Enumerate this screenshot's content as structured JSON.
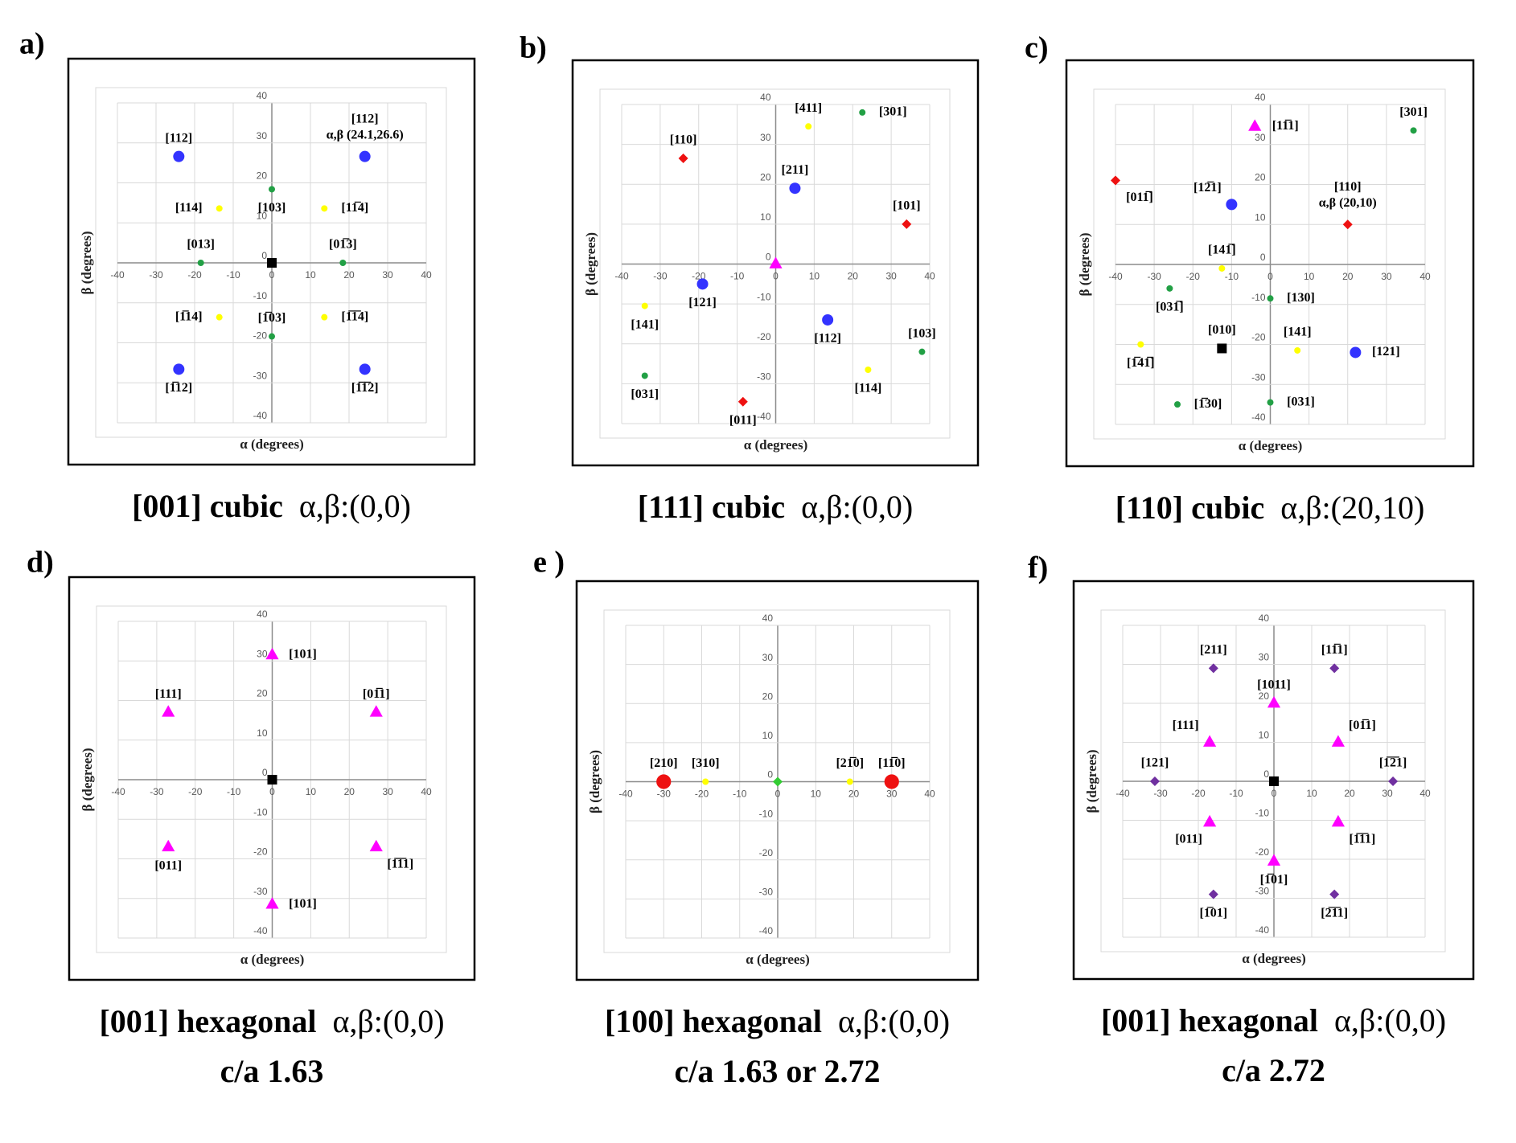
{
  "chart_data": [
    {
      "type": "scatter",
      "panel": "a)",
      "title": "[001] cubic",
      "title_coords": "α,β:(0,0)",
      "x_label": "α (degrees)",
      "y_label": "β (degrees)",
      "xlim": [
        -40,
        40
      ],
      "ylim": [
        -40,
        40
      ],
      "xticks": [
        -40,
        -30,
        -20,
        -10,
        0,
        10,
        20,
        30,
        40
      ],
      "yticks": [
        -40,
        -30,
        -20,
        -10,
        0,
        10,
        20,
        30,
        40
      ],
      "grid": true,
      "points": [
        {
          "label": "[112]",
          "x": -24.1,
          "y": 26.6,
          "color": "#3333ff",
          "marker": "circle"
        },
        {
          "label": "[112]",
          "note": "α,β (24.1,26.6)",
          "x": 24.1,
          "y": 26.6,
          "color": "#3333ff",
          "marker": "circle"
        },
        {
          "label": "[114]",
          "x": -13.6,
          "y": 13.6,
          "color": "#ffff00",
          "marker": "dot"
        },
        {
          "label": "[11̅4]",
          "x": 13.6,
          "y": 13.6,
          "color": "#ffff00",
          "marker": "dot"
        },
        {
          "label": "[103]",
          "x": 0,
          "y": 18.4,
          "color": "#22a045",
          "marker": "dot"
        },
        {
          "label": "[013]",
          "x": -18.4,
          "y": 0,
          "color": "#22a045",
          "marker": "dot"
        },
        {
          "label": "[01̅3]",
          "x": 18.4,
          "y": 0,
          "color": "#22a045",
          "marker": "dot"
        },
        {
          "x": 0,
          "y": 0,
          "color": "#000000",
          "marker": "square"
        },
        {
          "label": "[1̅14]",
          "x": -13.6,
          "y": -13.6,
          "color": "#ffff00",
          "marker": "dot"
        },
        {
          "label": "[1̅1̅4]",
          "x": 13.6,
          "y": -13.6,
          "color": "#ffff00",
          "marker": "dot"
        },
        {
          "label": "[1̅03]",
          "x": 0,
          "y": -18.4,
          "color": "#22a045",
          "marker": "dot"
        },
        {
          "label": "[1̅12]",
          "x": -24.1,
          "y": -26.6,
          "color": "#3333ff",
          "marker": "circle"
        },
        {
          "label": "[1̅1̅2]",
          "x": 24.1,
          "y": -26.6,
          "color": "#3333ff",
          "marker": "circle"
        }
      ]
    },
    {
      "type": "scatter",
      "panel": "b)",
      "title": "[111] cubic",
      "title_coords": "α,β:(0,0)",
      "x_label": "α (degrees)",
      "y_label": "β (degrees)",
      "xlim": [
        -40,
        40
      ],
      "ylim": [
        -40,
        40
      ],
      "xticks": [
        -40,
        -30,
        -20,
        -10,
        0,
        10,
        20,
        30,
        40
      ],
      "yticks": [
        -40,
        -30,
        -20,
        -10,
        0,
        10,
        20,
        30,
        40
      ],
      "grid": true,
      "points": [
        {
          "label": "[110]",
          "x": -24,
          "y": 26.5,
          "color": "#ee1111",
          "marker": "diamond"
        },
        {
          "label": "[411]",
          "x": 8.5,
          "y": 34.5,
          "color": "#ffff00",
          "marker": "dot"
        },
        {
          "label": "[301]",
          "x": 22.5,
          "y": 38,
          "color": "#22a045",
          "marker": "dot"
        },
        {
          "label": "[211]",
          "x": 5,
          "y": 19,
          "color": "#3333ff",
          "marker": "circle"
        },
        {
          "label": "[101]",
          "x": 34,
          "y": 10,
          "color": "#ee1111",
          "marker": "diamond"
        },
        {
          "x": 0,
          "y": 0,
          "color": "#ff00ff",
          "marker": "triangle"
        },
        {
          "label": "[121]",
          "x": -19,
          "y": -5,
          "color": "#3333ff",
          "marker": "circle"
        },
        {
          "label": "[141]",
          "x": -34,
          "y": -10.5,
          "color": "#ffff00",
          "marker": "dot"
        },
        {
          "label": "[112]",
          "x": 13.5,
          "y": -14,
          "color": "#3333ff",
          "marker": "circle"
        },
        {
          "label": "[103]",
          "x": 38,
          "y": -22,
          "color": "#22a045",
          "marker": "dot"
        },
        {
          "label": "[031]",
          "x": -34,
          "y": -28,
          "color": "#22a045",
          "marker": "dot"
        },
        {
          "label": "[114]",
          "x": 24,
          "y": -26.5,
          "color": "#ffff00",
          "marker": "dot"
        },
        {
          "label": "[011]",
          "x": -8.5,
          "y": -34.5,
          "color": "#ee1111",
          "marker": "diamond"
        }
      ]
    },
    {
      "type": "scatter",
      "panel": "c)",
      "title": "[110] cubic",
      "title_coords": "α,β:(20,10)",
      "x_label": "α (degrees)",
      "y_label": "β (degrees)",
      "xlim": [
        -40,
        40
      ],
      "ylim": [
        -40,
        40
      ],
      "xticks": [
        -40,
        -30,
        -20,
        -10,
        0,
        10,
        20,
        30,
        40
      ],
      "yticks": [
        -40,
        -30,
        -20,
        -10,
        0,
        10,
        20,
        30,
        40
      ],
      "grid": true,
      "points": [
        {
          "label": "[11̅1]",
          "x": -4,
          "y": 34.5,
          "color": "#ff00ff",
          "marker": "triangle"
        },
        {
          "label": "[301]",
          "x": 37,
          "y": 33.5,
          "color": "#22a045",
          "marker": "dot"
        },
        {
          "label": "[011̅]",
          "x": -40,
          "y": 21,
          "color": "#ee1111",
          "marker": "diamond"
        },
        {
          "label": "[12̅1]",
          "x": -10,
          "y": 15,
          "color": "#3333ff",
          "marker": "circle"
        },
        {
          "label": "[110]",
          "note": "α,β (20,10)",
          "x": 20,
          "y": 10,
          "color": "#ee1111",
          "marker": "diamond"
        },
        {
          "label": "[141̅]",
          "x": -12.5,
          "y": -1,
          "color": "#ffff00",
          "marker": "dot"
        },
        {
          "label": "[031̅]",
          "x": -26,
          "y": -6,
          "color": "#22a045",
          "marker": "dot"
        },
        {
          "label": "[130]",
          "x": 0,
          "y": -8.5,
          "color": "#22a045",
          "marker": "dot"
        },
        {
          "label": "[010]",
          "x": -12.5,
          "y": -21,
          "color": "#000000",
          "marker": "square"
        },
        {
          "label": "[141]",
          "x": 7,
          "y": -21.5,
          "color": "#ffff00",
          "marker": "dot"
        },
        {
          "label": "[121]",
          "x": 22,
          "y": -22,
          "color": "#3333ff",
          "marker": "circle"
        },
        {
          "label": "[1̅41̅]",
          "x": -33.5,
          "y": -20,
          "color": "#ffff00",
          "marker": "dot"
        },
        {
          "label": "[1̅30]",
          "x": -24,
          "y": -35,
          "color": "#22a045",
          "marker": "dot"
        },
        {
          "label": "[031]",
          "x": 0,
          "y": -34.5,
          "color": "#22a045",
          "marker": "dot"
        }
      ]
    },
    {
      "type": "scatter",
      "panel": "d)",
      "title": "[001] hexagonal",
      "title_coords": "α,β:(0,0)",
      "subtitle": "c/a 1.63",
      "x_label": "α (degrees)",
      "y_label": "β (degrees)",
      "xlim": [
        -40,
        40
      ],
      "ylim": [
        -40,
        40
      ],
      "xticks": [
        -40,
        -30,
        -20,
        -10,
        0,
        10,
        20,
        30,
        40
      ],
      "yticks": [
        -40,
        -30,
        -20,
        -10,
        0,
        10,
        20,
        30,
        40
      ],
      "grid": true,
      "points": [
        {
          "label": "[101]",
          "x": 0,
          "y": 31.5,
          "color": "#ff00ff",
          "marker": "triangle"
        },
        {
          "label": "[111]",
          "x": -27,
          "y": 17,
          "color": "#ff00ff",
          "marker": "triangle"
        },
        {
          "label": "[01̅1]",
          "x": 27,
          "y": 17,
          "color": "#ff00ff",
          "marker": "triangle"
        },
        {
          "x": 0,
          "y": 0,
          "color": "#000000",
          "marker": "square"
        },
        {
          "label": "[011]",
          "x": -27,
          "y": -17,
          "color": "#ff00ff",
          "marker": "triangle"
        },
        {
          "label": "[1̅1̅1]",
          "x": 27,
          "y": -17,
          "color": "#ff00ff",
          "marker": "triangle"
        },
        {
          "label": "[101]",
          "x": 0,
          "y": -31.5,
          "color": "#ff00ff",
          "marker": "triangle"
        }
      ]
    },
    {
      "type": "scatter",
      "panel": "e )",
      "title": "[100] hexagonal",
      "title_coords": "α,β:(0,0)",
      "subtitle": "c/a 1.63 or 2.72",
      "x_label": "α (degrees)",
      "y_label": "β (degrees)",
      "xlim": [
        -40,
        40
      ],
      "ylim": [
        -40,
        40
      ],
      "xticks": [
        -40,
        -30,
        -20,
        -10,
        0,
        10,
        20,
        30,
        40
      ],
      "yticks": [
        -40,
        -30,
        -20,
        -10,
        0,
        10,
        20,
        30,
        40
      ],
      "grid": true,
      "points": [
        {
          "label": "[210]",
          "x": -30,
          "y": 0,
          "color": "#ee1111",
          "marker": "circle"
        },
        {
          "label": "[310]",
          "x": -19,
          "y": 0,
          "color": "#ffff00",
          "marker": "dot"
        },
        {
          "x": 0,
          "y": 0,
          "color": "#33cc33",
          "marker": "diamond"
        },
        {
          "label": "[21̅0]",
          "x": 19,
          "y": 0,
          "color": "#ffff00",
          "marker": "dot"
        },
        {
          "label": "[11̅0]",
          "x": 30,
          "y": 0,
          "color": "#ee1111",
          "marker": "circle"
        }
      ]
    },
    {
      "type": "scatter",
      "panel": "f)",
      "title": "[001] hexagonal",
      "title_coords": "α,β:(0,0)",
      "subtitle": "c/a 2.72",
      "x_label": "α (degrees)",
      "y_label": "β (degrees)",
      "xlim": [
        -40,
        40
      ],
      "ylim": [
        -40,
        40
      ],
      "xticks": [
        -40,
        -30,
        -20,
        -10,
        0,
        10,
        20,
        30,
        40
      ],
      "yticks": [
        -40,
        -30,
        -20,
        -10,
        0,
        10,
        20,
        30,
        40
      ],
      "grid": true,
      "points": [
        {
          "label": "[211]",
          "x": -16,
          "y": 29,
          "color": "#7030a0",
          "marker": "diamond"
        },
        {
          "label": "[11̅1]",
          "x": 16,
          "y": 29,
          "color": "#7030a0",
          "marker": "diamond"
        },
        {
          "label": "[1011]",
          "x": 0,
          "y": 20,
          "color": "#ff00ff",
          "marker": "triangle"
        },
        {
          "label": "[111]",
          "x": -17,
          "y": 10,
          "color": "#ff00ff",
          "marker": "triangle"
        },
        {
          "label": "[01̅1]",
          "x": 17,
          "y": 10,
          "color": "#ff00ff",
          "marker": "triangle"
        },
        {
          "label": "[121]",
          "x": -31.5,
          "y": 0,
          "color": "#7030a0",
          "marker": "diamond"
        },
        {
          "label": "[1̅2̅1]",
          "x": 31.5,
          "y": 0,
          "color": "#7030a0",
          "marker": "diamond"
        },
        {
          "x": 0,
          "y": 0,
          "color": "#000000",
          "marker": "square"
        },
        {
          "label": "[011]",
          "x": -17,
          "y": -10.5,
          "color": "#ff00ff",
          "marker": "triangle"
        },
        {
          "label": "[1̅1̅1]",
          "x": 17,
          "y": -10.5,
          "color": "#ff00ff",
          "marker": "triangle"
        },
        {
          "label": "[1̅01]",
          "x": 0,
          "y": -20.5,
          "color": "#ff00ff",
          "marker": "triangle"
        },
        {
          "label": "[1̅01]",
          "x": -16,
          "y": -29,
          "color": "#7030a0",
          "marker": "diamond"
        },
        {
          "label": "[2̅1̅1]",
          "x": 16,
          "y": -29,
          "color": "#7030a0",
          "marker": "diamond"
        }
      ]
    }
  ]
}
